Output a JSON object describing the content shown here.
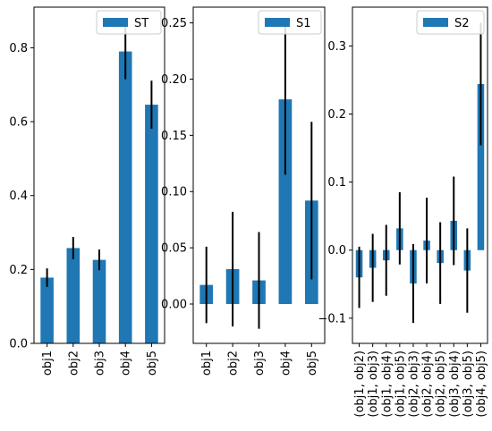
{
  "chart_data": [
    {
      "type": "bar",
      "categories": [
        "obj1",
        "obj2",
        "obj3",
        "obj4",
        "obj5"
      ],
      "series": [
        {
          "name": "ST",
          "values": [
            0.178,
            0.258,
            0.226,
            0.79,
            0.646
          ],
          "errors": [
            0.025,
            0.03,
            0.028,
            0.075,
            0.065
          ]
        }
      ],
      "ylim": [
        0.0,
        0.91
      ],
      "yticks": [
        0.0,
        0.2,
        0.4,
        0.6,
        0.8
      ],
      "ytick_labels": [
        "0.0",
        "0.2",
        "0.4",
        "0.6",
        "0.8"
      ],
      "legend": "top-right",
      "grid": false
    },
    {
      "type": "bar",
      "categories": [
        "obj1",
        "obj2",
        "obj3",
        "obj4",
        "obj5"
      ],
      "series": [
        {
          "name": "S1",
          "values": [
            0.017,
            0.031,
            0.021,
            0.182,
            0.092
          ],
          "errors": [
            0.034,
            0.051,
            0.043,
            0.067,
            0.07
          ]
        }
      ],
      "ylim": [
        -0.035,
        0.264
      ],
      "yticks": [
        0.0,
        0.05,
        0.1,
        0.15,
        0.2,
        0.25
      ],
      "ytick_labels": [
        "0.00",
        "0.05",
        "0.10",
        "0.15",
        "0.20",
        "0.25"
      ],
      "legend": "top-right",
      "grid": false
    },
    {
      "type": "bar",
      "categories": [
        "(obj1, obj2)",
        "(obj1, obj3)",
        "(obj1, obj4)",
        "(obj1, obj5)",
        "(obj2, obj3)",
        "(obj2, obj4)",
        "(obj2, obj5)",
        "(obj3, obj4)",
        "(obj3, obj5)",
        "(obj4, obj5)"
      ],
      "series": [
        {
          "name": "S2",
          "values": [
            -0.04,
            -0.026,
            -0.015,
            0.032,
            -0.049,
            0.014,
            -0.019,
            0.043,
            -0.03,
            0.244
          ],
          "errors": [
            0.045,
            0.05,
            0.052,
            0.053,
            0.058,
            0.063,
            0.06,
            0.065,
            0.062,
            0.09
          ]
        }
      ],
      "ylim": [
        -0.137,
        0.357
      ],
      "yticks": [
        -0.1,
        0.0,
        0.1,
        0.2,
        0.3
      ],
      "ytick_labels": [
        "−0.1",
        "0.0",
        "0.1",
        "0.2",
        "0.3"
      ],
      "legend": "top-right",
      "grid": false
    }
  ],
  "style": {
    "bar_color": "#1f77b4",
    "error_color": "#000000",
    "axis_color": "#000000"
  }
}
